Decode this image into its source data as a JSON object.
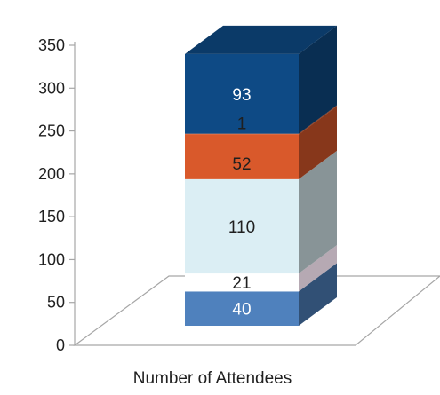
{
  "chart_data": {
    "type": "bar",
    "style": "3d-stacked-column",
    "categories": [
      "Number of Attendees"
    ],
    "series": [
      {
        "values": [
          40
        ],
        "label": "40",
        "color": "#4f81bd",
        "text_color": "#ffffff"
      },
      {
        "values": [
          21
        ],
        "label": "21",
        "color": "#ffffff",
        "text_color": "#1f1f1f"
      },
      {
        "values": [
          110
        ],
        "label": "110",
        "color": "#dbeef4",
        "text_color": "#1f1f1f"
      },
      {
        "values": [
          52
        ],
        "label": "52",
        "color": "#d9592b",
        "text_color": "#1f1f1f"
      },
      {
        "values": [
          1
        ],
        "label": "1",
        "color": "#d9592b",
        "text_color": "#1f1f1f"
      },
      {
        "values": [
          93
        ],
        "label": "93",
        "color": "#0e4a85",
        "text_color": "#ffffff"
      }
    ],
    "y_ticks": [
      "0",
      "50",
      "100",
      "150",
      "200",
      "250",
      "300",
      "350"
    ],
    "ylim": [
      0,
      350
    ],
    "grid": false,
    "legend": "none"
  }
}
